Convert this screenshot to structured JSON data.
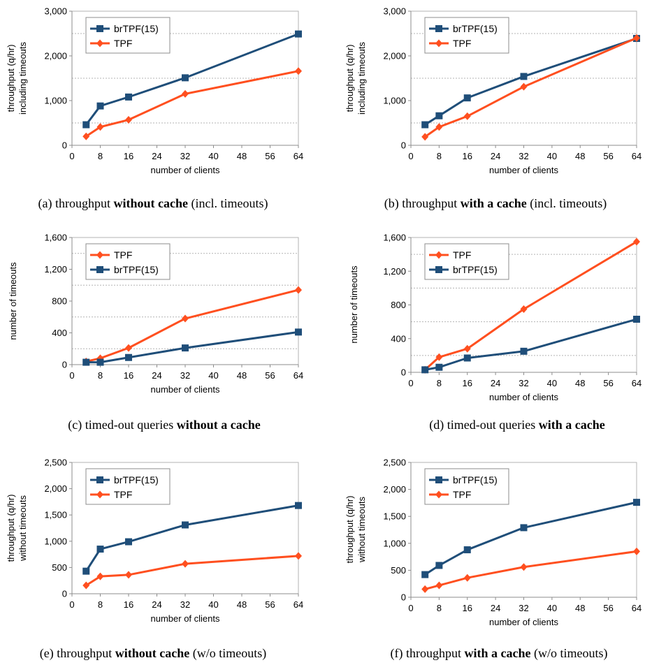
{
  "colors": {
    "brTPF": "#1f4e79",
    "TPF": "#ff4f1f"
  },
  "chart_data": [
    {
      "id": "a",
      "type": "line",
      "caption": {
        "prefix": "(a)  throughput ",
        "bold": "without cache",
        "suffix": " (incl. timeouts)"
      },
      "xlabel": "number of clients",
      "ylabel": [
        "throughput (q/hr)",
        "including timeouts"
      ],
      "xlim": [
        0,
        64
      ],
      "xticks": [
        0,
        8,
        16,
        24,
        32,
        40,
        48,
        56,
        64
      ],
      "ylim": [
        0,
        3000
      ],
      "yticks": [
        0,
        1000,
        2000,
        3000
      ],
      "ytick_labels": [
        "0",
        "1,000",
        "2,000",
        "3,000"
      ],
      "yminor": [
        500,
        1500,
        2500
      ],
      "legend_position": "top-left",
      "series": [
        {
          "name": "brTPF(15)",
          "color_key": "brTPF",
          "marker": "square",
          "x": [
            4,
            8,
            16,
            32,
            64
          ],
          "y": [
            460,
            880,
            1080,
            1510,
            2490
          ]
        },
        {
          "name": "TPF",
          "color_key": "TPF",
          "marker": "diamond",
          "x": [
            4,
            8,
            16,
            32,
            64
          ],
          "y": [
            200,
            410,
            570,
            1150,
            1660
          ]
        }
      ]
    },
    {
      "id": "b",
      "type": "line",
      "caption": {
        "prefix": "(b)  throughput ",
        "bold": "with a cache",
        "suffix": " (incl. timeouts)"
      },
      "xlabel": "number of clients",
      "ylabel": [
        "throughput (q/hr)",
        "including timeouts"
      ],
      "xlim": [
        0,
        64
      ],
      "xticks": [
        0,
        8,
        16,
        24,
        32,
        40,
        48,
        56,
        64
      ],
      "ylim": [
        0,
        3000
      ],
      "yticks": [
        0,
        1000,
        2000,
        3000
      ],
      "ytick_labels": [
        "0",
        "1,000",
        "2,000",
        "3,000"
      ],
      "yminor": [
        500,
        1500,
        2500
      ],
      "legend_position": "top-left",
      "series": [
        {
          "name": "brTPF(15)",
          "color_key": "brTPF",
          "marker": "square",
          "x": [
            4,
            8,
            16,
            32,
            64
          ],
          "y": [
            460,
            660,
            1060,
            1540,
            2390
          ]
        },
        {
          "name": "TPF",
          "color_key": "TPF",
          "marker": "diamond",
          "x": [
            4,
            8,
            16,
            32,
            64
          ],
          "y": [
            190,
            410,
            650,
            1310,
            2400
          ]
        }
      ]
    },
    {
      "id": "c",
      "type": "line",
      "caption": {
        "prefix": "(c)  timed-out queries ",
        "bold": "without a cache",
        "suffix": ""
      },
      "xlabel": "number of clients",
      "ylabel": [
        "number of timeouts"
      ],
      "xlim": [
        0,
        64
      ],
      "xticks": [
        0,
        8,
        16,
        24,
        32,
        40,
        48,
        56,
        64
      ],
      "ylim": [
        0,
        1600
      ],
      "yticks": [
        0,
        400,
        800,
        1200,
        1600
      ],
      "ytick_labels": [
        "0",
        "400",
        "800",
        "1,200",
        "1,600"
      ],
      "yminor": [
        200,
        600,
        1000,
        1400
      ],
      "legend_position": "top-left",
      "series": [
        {
          "name": "TPF",
          "color_key": "TPF",
          "marker": "diamond",
          "x": [
            4,
            8,
            16,
            32,
            64
          ],
          "y": [
            40,
            80,
            210,
            580,
            940
          ]
        },
        {
          "name": "brTPF(15)",
          "color_key": "brTPF",
          "marker": "square",
          "x": [
            4,
            8,
            16,
            32,
            64
          ],
          "y": [
            30,
            30,
            90,
            210,
            410
          ]
        }
      ]
    },
    {
      "id": "d",
      "type": "line",
      "caption": {
        "prefix": "(d)  timed-out queries ",
        "bold": "with a cache",
        "suffix": ""
      },
      "xlabel": "number of clients",
      "ylabel": [
        "number of timeouts"
      ],
      "xlim": [
        0,
        64
      ],
      "xticks": [
        0,
        8,
        16,
        24,
        32,
        40,
        48,
        56,
        64
      ],
      "ylim": [
        0,
        1600
      ],
      "yticks": [
        0,
        400,
        800,
        1200,
        1600
      ],
      "ytick_labels": [
        "0",
        "400",
        "800",
        "1,200",
        "1,600"
      ],
      "yminor": [
        200,
        600,
        1000,
        1400
      ],
      "legend_position": "top-left",
      "series": [
        {
          "name": "TPF",
          "color_key": "TPF",
          "marker": "diamond",
          "x": [
            4,
            8,
            16,
            32,
            64
          ],
          "y": [
            30,
            180,
            280,
            750,
            1550
          ]
        },
        {
          "name": "brTPF(15)",
          "color_key": "brTPF",
          "marker": "square",
          "x": [
            4,
            8,
            16,
            32,
            64
          ],
          "y": [
            30,
            60,
            170,
            250,
            630
          ]
        }
      ]
    },
    {
      "id": "e",
      "type": "line",
      "caption": {
        "prefix": "(e)  throughput ",
        "bold": "without cache",
        "suffix": " (w/o timeouts)"
      },
      "xlabel": "number of clients",
      "ylabel": [
        "throughput (q/hr)",
        "without timeouts"
      ],
      "xlim": [
        0,
        64
      ],
      "xticks": [
        0,
        8,
        16,
        24,
        32,
        40,
        48,
        56,
        64
      ],
      "ylim": [
        0,
        2500
      ],
      "yticks": [
        0,
        500,
        1000,
        1500,
        2000,
        2500
      ],
      "ytick_labels": [
        "0",
        "500",
        "1,000",
        "1,500",
        "2,000",
        "2,500"
      ],
      "yminor": [],
      "legend_position": "top-left",
      "series": [
        {
          "name": "brTPF(15)",
          "color_key": "brTPF",
          "marker": "square",
          "x": [
            4,
            8,
            16,
            32,
            64
          ],
          "y": [
            430,
            850,
            990,
            1310,
            1680
          ]
        },
        {
          "name": "TPF",
          "color_key": "TPF",
          "marker": "diamond",
          "x": [
            4,
            8,
            16,
            32,
            64
          ],
          "y": [
            160,
            330,
            360,
            570,
            720
          ]
        }
      ]
    },
    {
      "id": "f",
      "type": "line",
      "caption": {
        "prefix": "(f)  throughput ",
        "bold": "with a cache",
        "suffix": " (w/o timeouts)"
      },
      "xlabel": "number of clients",
      "ylabel": [
        "throughput (q/hr)",
        "without timeouts"
      ],
      "xlim": [
        0,
        64
      ],
      "xticks": [
        0,
        8,
        16,
        24,
        32,
        40,
        48,
        56,
        64
      ],
      "ylim": [
        0,
        2500
      ],
      "yticks": [
        0,
        500,
        1000,
        1500,
        2000,
        2500
      ],
      "ytick_labels": [
        "0",
        "500",
        "1,000",
        "1,500",
        "2,000",
        "2,500"
      ],
      "yminor": [],
      "legend_position": "top-left",
      "series": [
        {
          "name": "brTPF(15)",
          "color_key": "brTPF",
          "marker": "square",
          "x": [
            4,
            8,
            16,
            32,
            64
          ],
          "y": [
            420,
            590,
            880,
            1290,
            1760
          ]
        },
        {
          "name": "TPF",
          "color_key": "TPF",
          "marker": "diamond",
          "x": [
            4,
            8,
            16,
            32,
            64
          ],
          "y": [
            150,
            220,
            360,
            560,
            850
          ]
        }
      ]
    }
  ]
}
